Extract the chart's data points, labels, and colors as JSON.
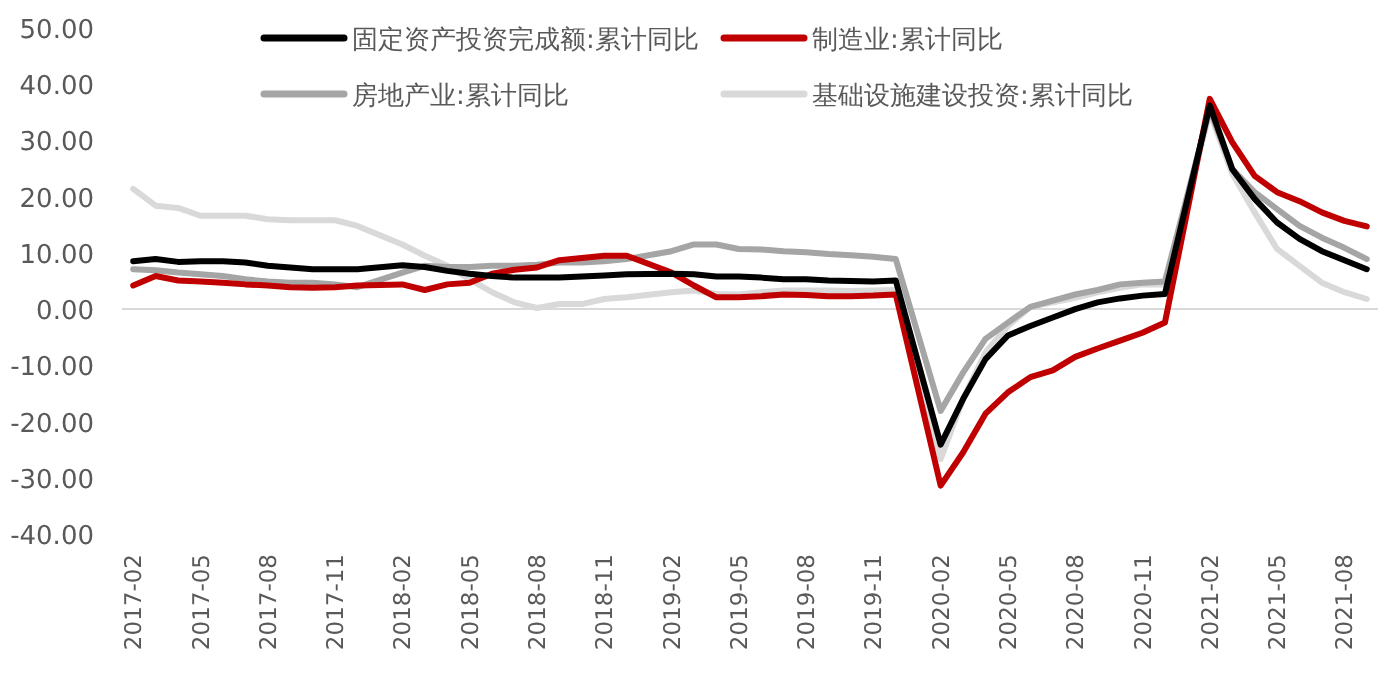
{
  "chart_data": {
    "type": "line",
    "legend": "top",
    "x": [
      "2017-02",
      "2017-03",
      "2017-04",
      "2017-05",
      "2017-06",
      "2017-07",
      "2017-08",
      "2017-09",
      "2017-10",
      "2017-11",
      "2017-12",
      "2018-02",
      "2018-03",
      "2018-04",
      "2018-05",
      "2018-06",
      "2018-07",
      "2018-08",
      "2018-09",
      "2018-10",
      "2018-11",
      "2018-12",
      "2019-02",
      "2019-03",
      "2019-04",
      "2019-05",
      "2019-06",
      "2019-07",
      "2019-08",
      "2019-09",
      "2019-10",
      "2019-11",
      "2019-12",
      "2020-02",
      "2020-03",
      "2020-04",
      "2020-05",
      "2020-06",
      "2020-07",
      "2020-08",
      "2020-09",
      "2020-10",
      "2020-11",
      "2020-12",
      "2021-02",
      "2021-03",
      "2021-04",
      "2021-05",
      "2021-06",
      "2021-07",
      "2021-08",
      "2021-09"
    ],
    "xlim": [
      "2017-01-16",
      "2021-09-16"
    ],
    "xticks": [
      {
        "value": "2017-02",
        "label": "2017-02"
      },
      {
        "value": "2017-05",
        "label": "2017-05"
      },
      {
        "value": "2017-08",
        "label": "2017-08"
      },
      {
        "value": "2017-11",
        "label": "2017-11"
      },
      {
        "value": "2018-02",
        "label": "2018-02"
      },
      {
        "value": "2018-05",
        "label": "2018-05"
      },
      {
        "value": "2018-08",
        "label": "2018-08"
      },
      {
        "value": "2018-11",
        "label": "2018-11"
      },
      {
        "value": "2019-02",
        "label": "2019-02"
      },
      {
        "value": "2019-05",
        "label": "2019-05"
      },
      {
        "value": "2019-08",
        "label": "2019-08"
      },
      {
        "value": "2019-11",
        "label": "2019-11"
      },
      {
        "value": "2020-02",
        "label": "2020-02"
      },
      {
        "value": "2020-05",
        "label": "2020-05"
      },
      {
        "value": "2020-08",
        "label": "2020-08"
      },
      {
        "value": "2020-11",
        "label": "2020-11"
      },
      {
        "value": "2021-02",
        "label": "2021-02"
      },
      {
        "value": "2021-05",
        "label": "2021-05"
      },
      {
        "value": "2021-08",
        "label": "2021-08"
      }
    ],
    "ylim": [
      -40,
      50
    ],
    "yticks": [
      {
        "value": 50,
        "label": "50.00"
      },
      {
        "value": 40,
        "label": "40.00"
      },
      {
        "value": 30,
        "label": "30.00"
      },
      {
        "value": 20,
        "label": "20.00"
      },
      {
        "value": 10,
        "label": "10.00"
      },
      {
        "value": 0,
        "label": "0.00"
      },
      {
        "value": -10,
        "label": "-10.00"
      },
      {
        "value": -20,
        "label": "-20.00"
      },
      {
        "value": -30,
        "label": "-30.00"
      },
      {
        "value": -40,
        "label": "-40.00"
      }
    ],
    "series": [
      {
        "name": "固定资产投资完成额:累计同比",
        "color": "#000000",
        "values": [
          8.5,
          8.9,
          8.4,
          8.5,
          8.5,
          8.3,
          7.7,
          7.4,
          7.1,
          7.1,
          7.1,
          7.8,
          7.5,
          6.8,
          6.3,
          5.9,
          5.6,
          5.6,
          5.6,
          5.8,
          6.0,
          6.2,
          6.3,
          6.2,
          5.8,
          5.8,
          5.6,
          5.3,
          5.3,
          5.1,
          5.0,
          4.9,
          5.1,
          -24.1,
          -16.0,
          -8.9,
          -4.7,
          -3.0,
          -1.5,
          0.0,
          1.2,
          1.9,
          2.4,
          2.7,
          36.2,
          24.9,
          19.6,
          15.4,
          12.5,
          10.3,
          8.7,
          7.1
        ]
      },
      {
        "name": "制造业:累计同比",
        "color": "#c00000",
        "values": [
          4.2,
          5.9,
          5.1,
          4.9,
          4.7,
          4.4,
          4.2,
          3.9,
          3.8,
          3.9,
          4.2,
          4.4,
          3.4,
          4.4,
          4.7,
          6.3,
          7.0,
          7.4,
          8.7,
          9.1,
          9.5,
          9.5,
          6.5,
          4.2,
          2.1,
          2.1,
          2.3,
          2.6,
          2.5,
          2.3,
          2.3,
          2.4,
          2.6,
          -31.4,
          -25.5,
          -18.6,
          -14.8,
          -12.1,
          -10.9,
          -8.5,
          -7.0,
          -5.6,
          -4.2,
          -2.4,
          37.4,
          29.7,
          23.7,
          20.8,
          19.2,
          17.2,
          15.7,
          14.7
        ]
      },
      {
        "name": "房地产业:累计同比",
        "color": "#a5a5a5",
        "values": [
          7.1,
          6.9,
          6.5,
          6.2,
          5.9,
          5.3,
          4.9,
          4.7,
          4.7,
          4.4,
          3.9,
          6.5,
          7.7,
          7.5,
          7.5,
          7.7,
          7.7,
          7.9,
          8.3,
          8.3,
          8.5,
          8.9,
          10.3,
          11.5,
          11.5,
          10.7,
          10.6,
          10.3,
          10.1,
          9.8,
          9.6,
          9.3,
          8.9,
          -18.1,
          -11.3,
          -5.3,
          -2.4,
          0.4,
          1.5,
          2.6,
          3.4,
          4.4,
          4.7,
          4.9,
          35.6,
          24.9,
          20.8,
          17.8,
          14.8,
          12.7,
          10.9,
          8.9
        ]
      },
      {
        "name": "基础设施建设投资:累计同比",
        "color": "#d9d9d9",
        "values": [
          21.4,
          18.4,
          18.0,
          16.6,
          16.6,
          16.6,
          16.0,
          15.8,
          15.8,
          15.8,
          14.8,
          11.5,
          9.5,
          7.7,
          5.3,
          3.0,
          1.2,
          0.2,
          0.9,
          0.9,
          1.8,
          2.1,
          3.0,
          3.3,
          2.7,
          2.6,
          3.0,
          3.3,
          3.3,
          3.3,
          3.2,
          3.3,
          3.4,
          -26.7,
          -16.0,
          -7.7,
          -3.0,
          0.4,
          1.2,
          2.0,
          3.0,
          3.8,
          4.4,
          4.4,
          35.0,
          24.1,
          17.2,
          10.7,
          7.7,
          4.7,
          3.0,
          1.8
        ]
      }
    ]
  }
}
